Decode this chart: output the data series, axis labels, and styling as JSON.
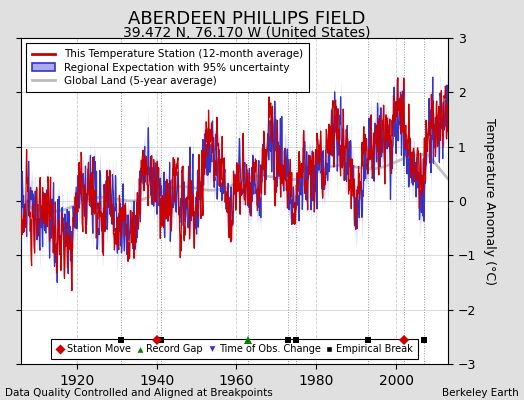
{
  "title": "ABERDEEN PHILLIPS FIELD",
  "subtitle": "39.472 N, 76.170 W (United States)",
  "ylabel": "Temperature Anomaly (°C)",
  "xlabel_note": "Data Quality Controlled and Aligned at Breakpoints",
  "credit": "Berkeley Earth",
  "year_start": 1906,
  "year_end": 2013,
  "ylim": [
    -3,
    3
  ],
  "yticks": [
    -3,
    -2,
    -1,
    0,
    1,
    2,
    3
  ],
  "xticks": [
    1920,
    1940,
    1960,
    1980,
    2000
  ],
  "bg_color": "#e0e0e0",
  "plot_bg_color": "#ffffff",
  "red_color": "#cc0000",
  "blue_color": "#3333cc",
  "blue_fill_color": "#aaaaee",
  "gray_color": "#bbbbbb",
  "vline_color": "#999999",
  "grid_color": "#cccccc",
  "legend_labels": [
    "This Temperature Station (12-month average)",
    "Regional Expectation with 95% uncertainty",
    "Global Land (5-year average)"
  ],
  "bottom_legend_labels": [
    "Station Move",
    "Record Gap",
    "Time of Obs. Change",
    "Empirical Break"
  ],
  "empirical_break_years": [
    1931,
    1941,
    1973,
    1975,
    1993,
    2007
  ],
  "station_move_years": [
    1940,
    2002
  ],
  "record_gap_years": [
    1963
  ],
  "vline_years": [
    1931,
    1941,
    1963,
    1973,
    1975,
    1993,
    2002,
    2007
  ]
}
